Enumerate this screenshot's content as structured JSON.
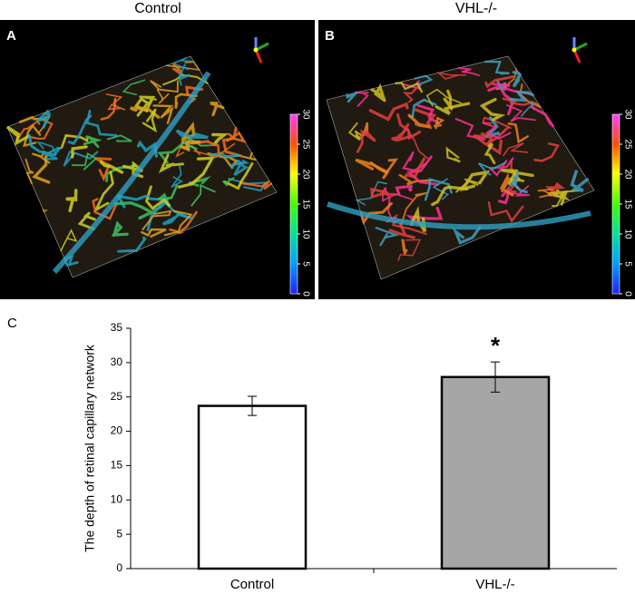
{
  "panels": [
    {
      "letter": "A",
      "title": "Control",
      "colorbar_ticks": [
        0,
        5,
        10,
        15,
        20,
        25,
        30
      ]
    },
    {
      "letter": "B",
      "title": "VHL-/-",
      "colorbar_ticks": [
        0,
        5,
        10,
        15,
        20,
        25,
        30
      ]
    }
  ],
  "chart_data": {
    "type": "bar",
    "panel_letter": "C",
    "ylabel": "The depth of retinal capillary network",
    "categories": [
      "Control",
      "VHL-/-"
    ],
    "values": [
      23.7,
      27.9
    ],
    "errors": [
      1.4,
      2.2
    ],
    "colors": [
      "#ffffff",
      "#a6a6a6"
    ],
    "ylim": [
      0,
      35
    ],
    "yticks": [
      0,
      5,
      10,
      15,
      20,
      25,
      30,
      35
    ],
    "annotations": [
      {
        "text": "*",
        "category": 1
      }
    ]
  }
}
